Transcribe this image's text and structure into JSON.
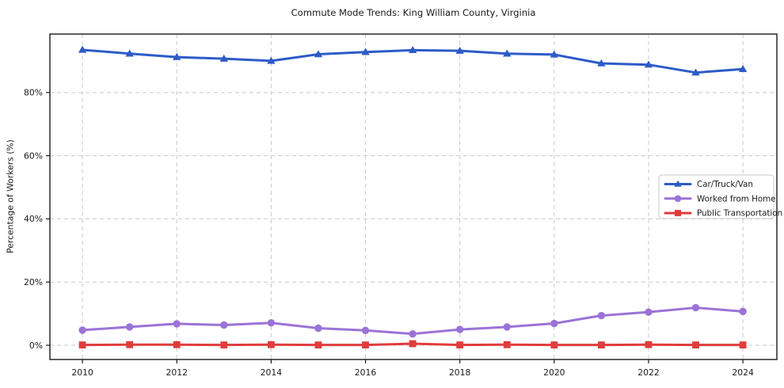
{
  "chart_data": {
    "type": "line",
    "title": "Commute Mode Trends: King William County, Virginia",
    "xlabel": "",
    "ylabel": "Percentage of Workers (%)",
    "x": [
      2010,
      2011,
      2012,
      2013,
      2014,
      2015,
      2016,
      2017,
      2018,
      2019,
      2020,
      2021,
      2022,
      2023,
      2024
    ],
    "series": [
      {
        "name": "Car/Truck/Van",
        "marker": "triangle",
        "color": "#2d5bc7",
        "values": [
          93.5,
          92.3,
          91.2,
          90.7,
          90.0,
          92.1,
          92.8,
          93.4,
          93.2,
          92.3,
          92.0,
          89.2,
          88.8,
          86.3,
          87.4
        ]
      },
      {
        "name": "Worked from Home",
        "marker": "circle",
        "color": "#9b73d7",
        "values": [
          4.8,
          5.8,
          6.8,
          6.4,
          7.1,
          5.4,
          4.7,
          3.6,
          5.0,
          5.8,
          6.9,
          9.4,
          10.5,
          11.9,
          10.7
        ]
      },
      {
        "name": "Public Transportation",
        "marker": "square",
        "color": "#e13c3c",
        "values": [
          0.1,
          0.2,
          0.2,
          0.1,
          0.2,
          0.1,
          0.1,
          0.5,
          0.1,
          0.2,
          0.1,
          0.1,
          0.2,
          0.1,
          0.1
        ]
      }
    ],
    "xticks": [
      2010,
      2012,
      2014,
      2016,
      2018,
      2020,
      2022,
      2024
    ],
    "xtick_labels": [
      "2010",
      "2012",
      "2014",
      "2016",
      "2018",
      "2020",
      "2022",
      "2024"
    ],
    "yticks": [
      0,
      20,
      40,
      60,
      80
    ],
    "ytick_labels": [
      "0%",
      "20%",
      "40%",
      "60%",
      "80%"
    ],
    "xlim": [
      2009.31,
      2024.72
    ],
    "ylim": [
      -4.5,
      98.5
    ],
    "grid": true,
    "grid_style": "dashed",
    "grid_color": "#c9c9c9",
    "legend_position": "center right",
    "background_color": "#ffffff",
    "frame_color": "#1a1a1a"
  }
}
